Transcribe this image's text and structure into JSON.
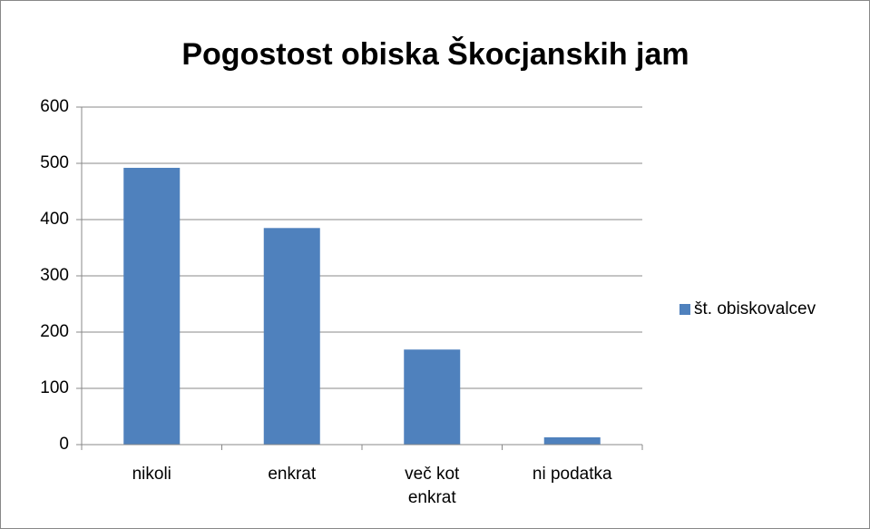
{
  "chart_data": {
    "type": "bar",
    "title": "Pogostost obiska Škocjanskih jam",
    "categories": [
      "nikoli",
      "enkrat",
      "več kot enkrat",
      "ni podatka"
    ],
    "series": [
      {
        "name": "št. obiskovalcev",
        "color": "#4f81bd",
        "values": [
          492,
          385,
          169,
          13
        ]
      }
    ],
    "ylim": [
      0,
      600
    ],
    "yticks": [
      0,
      100,
      200,
      300,
      400,
      500,
      600
    ],
    "grid": true,
    "legend": "right"
  }
}
